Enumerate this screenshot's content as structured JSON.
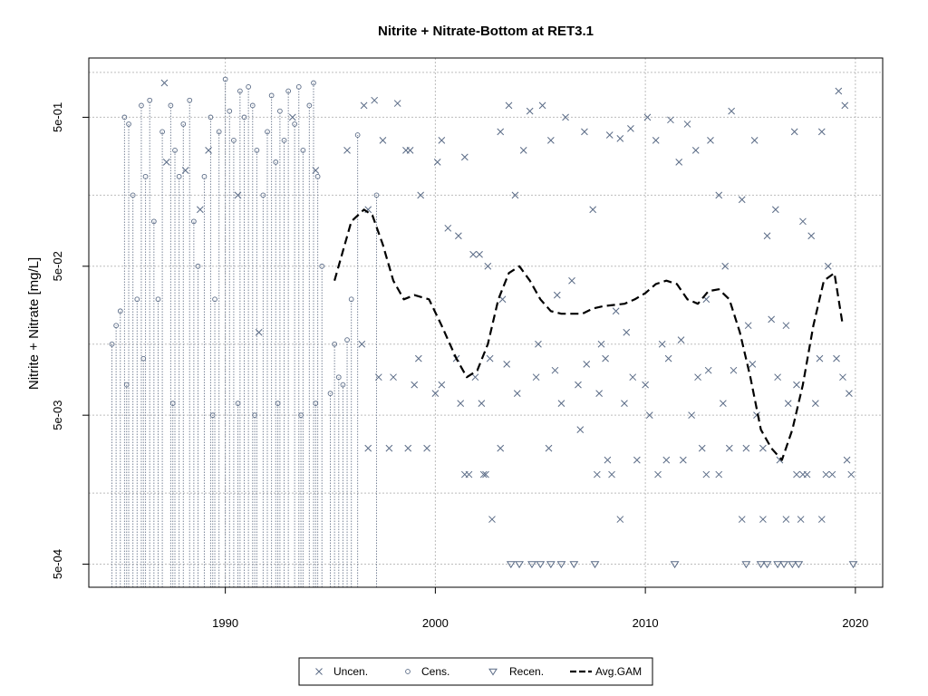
{
  "chart_data": {
    "type": "scatter",
    "title": "Nitrite + Nitrate-Bottom at RET3.1",
    "xlabel": "",
    "ylabel": "Nitrite + Nitrate [mg/L]",
    "x_ticks": [
      1990,
      2000,
      2010,
      2020
    ],
    "y_ticks": [
      "5e-04",
      "5e-03",
      "5e-02",
      "5e-01"
    ],
    "y_scale": "log",
    "ylim": [
      0.00035,
      1.25
    ],
    "xlim": [
      1983.5,
      2021.3
    ],
    "grid": true,
    "legend_position": "bottom",
    "legend": [
      "Uncen.",
      "Cens.",
      "Recen.",
      "Avg.GAM"
    ],
    "colors": {
      "points": "#5a6b86",
      "gam": "#000000",
      "grid": "#bdbdbd"
    },
    "series": [
      {
        "name": "Uncen.",
        "marker": "x",
        "points": [
          [
            1987.1,
            0.85
          ],
          [
            1987.2,
            0.25
          ],
          [
            1988.1,
            0.22
          ],
          [
            1988.8,
            0.12
          ],
          [
            1989.2,
            0.3
          ],
          [
            1990.6,
            0.15
          ],
          [
            1991.6,
            0.018
          ],
          [
            1993.2,
            0.5
          ],
          [
            1994.3,
            0.22
          ],
          [
            1995.8,
            0.3
          ],
          [
            1996.6,
            0.6
          ],
          [
            1997.1,
            0.65
          ],
          [
            1998.2,
            0.62
          ],
          [
            1998.6,
            0.3
          ],
          [
            1999.3,
            0.15
          ],
          [
            2000.1,
            0.25
          ],
          [
            2000.3,
            0.35
          ],
          [
            2001.1,
            0.08
          ],
          [
            2001.4,
            0.27
          ],
          [
            2002.1,
            0.06
          ],
          [
            2003.1,
            0.4
          ],
          [
            2003.5,
            0.6
          ],
          [
            2003.8,
            0.15
          ],
          [
            2004.2,
            0.3
          ],
          [
            2004.5,
            0.55
          ],
          [
            2005.1,
            0.6
          ],
          [
            2005.5,
            0.35
          ],
          [
            2006.2,
            0.5
          ],
          [
            2007.1,
            0.4
          ],
          [
            2007.5,
            0.12
          ],
          [
            2008.3,
            0.38
          ],
          [
            2008.8,
            0.36
          ],
          [
            2009.3,
            0.42
          ],
          [
            2010.1,
            0.5
          ],
          [
            2010.5,
            0.35
          ],
          [
            2011.2,
            0.48
          ],
          [
            2011.6,
            0.25
          ],
          [
            2012.0,
            0.45
          ],
          [
            2012.4,
            0.3
          ],
          [
            2013.1,
            0.35
          ],
          [
            2013.5,
            0.15
          ],
          [
            2014.1,
            0.55
          ],
          [
            2014.6,
            0.14
          ],
          [
            2015.2,
            0.35
          ],
          [
            2015.8,
            0.08
          ],
          [
            2016.2,
            0.12
          ],
          [
            2017.1,
            0.4
          ],
          [
            2017.9,
            0.08
          ],
          [
            2018.4,
            0.4
          ],
          [
            2019.2,
            0.75
          ],
          [
            2019.5,
            0.6
          ],
          [
            1996.8,
            0.12
          ],
          [
            1997.5,
            0.35
          ],
          [
            1998.8,
            0.3
          ],
          [
            2000.6,
            0.09
          ],
          [
            2001.8,
            0.06
          ],
          [
            2002.5,
            0.05
          ],
          [
            2003.2,
            0.03
          ],
          [
            2004.9,
            0.015
          ],
          [
            2005.8,
            0.032
          ],
          [
            2006.5,
            0.04
          ],
          [
            2007.9,
            0.015
          ],
          [
            2008.6,
            0.025
          ],
          [
            2009.1,
            0.018
          ],
          [
            2010.8,
            0.015
          ],
          [
            2011.7,
            0.016
          ],
          [
            2012.9,
            0.03
          ],
          [
            2013.8,
            0.05
          ],
          [
            2014.9,
            0.02
          ],
          [
            2016.0,
            0.022
          ],
          [
            2016.7,
            0.02
          ],
          [
            2017.5,
            0.1
          ],
          [
            2018.7,
            0.05
          ],
          [
            2019.1,
            0.012
          ],
          [
            1996.5,
            0.015
          ],
          [
            1997.3,
            0.009
          ],
          [
            1998.0,
            0.009
          ],
          [
            1999.2,
            0.012
          ],
          [
            2000.3,
            0.008
          ],
          [
            2001.0,
            0.012
          ],
          [
            2001.9,
            0.009
          ],
          [
            2002.6,
            0.012
          ],
          [
            2003.4,
            0.011
          ],
          [
            2004.8,
            0.009
          ],
          [
            2005.7,
            0.01
          ],
          [
            2006.8,
            0.008
          ],
          [
            2007.2,
            0.011
          ],
          [
            2008.1,
            0.012
          ],
          [
            2009.4,
            0.009
          ],
          [
            2010.0,
            0.008
          ],
          [
            2011.1,
            0.012
          ],
          [
            2012.5,
            0.009
          ],
          [
            2013.0,
            0.01
          ],
          [
            2014.2,
            0.01
          ],
          [
            2015.1,
            0.011
          ],
          [
            2016.3,
            0.009
          ],
          [
            2017.2,
            0.008
          ],
          [
            2018.3,
            0.012
          ],
          [
            2019.4,
            0.009
          ],
          [
            1999.0,
            0.008
          ],
          [
            2000.0,
            0.007
          ],
          [
            2001.2,
            0.006
          ],
          [
            2002.2,
            0.006
          ],
          [
            2003.9,
            0.007
          ],
          [
            2006.0,
            0.006
          ],
          [
            2007.8,
            0.007
          ],
          [
            2009.0,
            0.006
          ],
          [
            2010.2,
            0.005
          ],
          [
            2012.2,
            0.005
          ],
          [
            2013.7,
            0.006
          ],
          [
            2015.3,
            0.005
          ],
          [
            2016.8,
            0.006
          ],
          [
            2018.1,
            0.006
          ],
          [
            2019.7,
            0.007
          ],
          [
            1996.8,
            0.003
          ],
          [
            1997.8,
            0.003
          ],
          [
            1998.7,
            0.003
          ],
          [
            1999.6,
            0.003
          ],
          [
            2001.4,
            0.002
          ],
          [
            2002.4,
            0.002
          ],
          [
            2003.1,
            0.003
          ],
          [
            2005.4,
            0.003
          ],
          [
            2006.9,
            0.004
          ],
          [
            2008.2,
            0.0025
          ],
          [
            2009.6,
            0.0025
          ],
          [
            2011.0,
            0.0025
          ],
          [
            2011.8,
            0.0025
          ],
          [
            2012.7,
            0.003
          ],
          [
            2014.0,
            0.003
          ],
          [
            2014.8,
            0.003
          ],
          [
            2015.6,
            0.003
          ],
          [
            2016.4,
            0.0025
          ],
          [
            2017.7,
            0.002
          ],
          [
            2018.9,
            0.002
          ],
          [
            2019.6,
            0.0025
          ],
          [
            2001.6,
            0.002
          ],
          [
            2002.3,
            0.002
          ],
          [
            2007.7,
            0.002
          ],
          [
            2008.4,
            0.002
          ],
          [
            2010.6,
            0.002
          ],
          [
            2012.9,
            0.002
          ],
          [
            2013.5,
            0.002
          ],
          [
            2017.2,
            0.002
          ],
          [
            2017.5,
            0.002
          ],
          [
            2018.6,
            0.002
          ],
          [
            2019.8,
            0.002
          ],
          [
            2002.7,
            0.001
          ],
          [
            2008.8,
            0.001
          ],
          [
            2014.6,
            0.001
          ],
          [
            2015.6,
            0.001
          ],
          [
            2016.7,
            0.001
          ],
          [
            2017.4,
            0.001
          ],
          [
            2018.4,
            0.001
          ]
        ]
      },
      {
        "name": "Cens.",
        "marker": "o",
        "points": [
          [
            1984.6,
            0.015
          ],
          [
            1984.8,
            0.02
          ],
          [
            1985.0,
            0.025
          ],
          [
            1985.2,
            0.5
          ],
          [
            1985.4,
            0.45
          ],
          [
            1985.6,
            0.15
          ],
          [
            1985.8,
            0.03
          ],
          [
            1986.0,
            0.6
          ],
          [
            1986.2,
            0.2
          ],
          [
            1986.4,
            0.65
          ],
          [
            1986.6,
            0.1
          ],
          [
            1986.8,
            0.03
          ],
          [
            1987.0,
            0.4
          ],
          [
            1987.4,
            0.6
          ],
          [
            1987.6,
            0.3
          ],
          [
            1987.8,
            0.2
          ],
          [
            1988.0,
            0.45
          ],
          [
            1988.3,
            0.65
          ],
          [
            1988.5,
            0.1
          ],
          [
            1988.7,
            0.05
          ],
          [
            1989.0,
            0.2
          ],
          [
            1989.3,
            0.5
          ],
          [
            1989.5,
            0.03
          ],
          [
            1989.7,
            0.4
          ],
          [
            1990.0,
            0.9
          ],
          [
            1990.2,
            0.55
          ],
          [
            1990.4,
            0.35
          ],
          [
            1990.7,
            0.75
          ],
          [
            1990.9,
            0.5
          ],
          [
            1991.1,
            0.8
          ],
          [
            1991.3,
            0.6
          ],
          [
            1991.5,
            0.3
          ],
          [
            1991.8,
            0.15
          ],
          [
            1992.0,
            0.4
          ],
          [
            1992.2,
            0.7
          ],
          [
            1992.4,
            0.25
          ],
          [
            1992.6,
            0.55
          ],
          [
            1992.8,
            0.35
          ],
          [
            1993.0,
            0.75
          ],
          [
            1993.3,
            0.45
          ],
          [
            1993.5,
            0.8
          ],
          [
            1993.7,
            0.3
          ],
          [
            1994.0,
            0.6
          ],
          [
            1994.2,
            0.85
          ],
          [
            1994.4,
            0.2
          ],
          [
            1994.6,
            0.05
          ],
          [
            1995.0,
            0.007
          ],
          [
            1995.2,
            0.015
          ],
          [
            1995.4,
            0.009
          ],
          [
            1995.6,
            0.008
          ],
          [
            1995.8,
            0.016
          ],
          [
            1996.0,
            0.03
          ],
          [
            1996.3,
            0.38
          ],
          [
            1997.2,
            0.15
          ],
          [
            1985.3,
            0.008
          ],
          [
            1986.1,
            0.012
          ],
          [
            1987.5,
            0.006
          ],
          [
            1989.4,
            0.005
          ],
          [
            1990.6,
            0.006
          ],
          [
            1991.4,
            0.005
          ],
          [
            1992.5,
            0.006
          ],
          [
            1993.6,
            0.005
          ],
          [
            1994.3,
            0.006
          ]
        ]
      },
      {
        "name": "Recen.",
        "marker": "v",
        "points": [
          [
            2003.6,
            0.0005
          ],
          [
            2004.0,
            0.0005
          ],
          [
            2004.6,
            0.0005
          ],
          [
            2005.0,
            0.0005
          ],
          [
            2005.5,
            0.0005
          ],
          [
            2006.0,
            0.0005
          ],
          [
            2006.6,
            0.0005
          ],
          [
            2007.6,
            0.0005
          ],
          [
            2011.4,
            0.0005
          ],
          [
            2014.8,
            0.0005
          ],
          [
            2015.5,
            0.0005
          ],
          [
            2015.8,
            0.0005
          ],
          [
            2016.3,
            0.0005
          ],
          [
            2016.6,
            0.0005
          ],
          [
            2017.0,
            0.0005
          ],
          [
            2017.3,
            0.0005
          ],
          [
            2019.9,
            0.0005
          ]
        ]
      },
      {
        "name": "Avg.GAM",
        "line": "dashed",
        "points": [
          [
            1995.2,
            0.04
          ],
          [
            1996.0,
            0.1
          ],
          [
            1996.6,
            0.12
          ],
          [
            1997.0,
            0.11
          ],
          [
            1997.5,
            0.07
          ],
          [
            1998.0,
            0.04
          ],
          [
            1998.5,
            0.03
          ],
          [
            1999.0,
            0.032
          ],
          [
            1999.7,
            0.03
          ],
          [
            2000.3,
            0.02
          ],
          [
            2001.0,
            0.012
          ],
          [
            2001.5,
            0.009
          ],
          [
            2002.0,
            0.01
          ],
          [
            2002.5,
            0.015
          ],
          [
            2003.0,
            0.03
          ],
          [
            2003.5,
            0.045
          ],
          [
            2004.0,
            0.05
          ],
          [
            2004.5,
            0.04
          ],
          [
            2005.0,
            0.03
          ],
          [
            2005.5,
            0.025
          ],
          [
            2006.0,
            0.024
          ],
          [
            2007.0,
            0.024
          ],
          [
            2007.5,
            0.026
          ],
          [
            2008.0,
            0.027
          ],
          [
            2009.0,
            0.028
          ],
          [
            2009.5,
            0.03
          ],
          [
            2010.0,
            0.033
          ],
          [
            2010.5,
            0.038
          ],
          [
            2011.0,
            0.04
          ],
          [
            2011.5,
            0.038
          ],
          [
            2012.0,
            0.03
          ],
          [
            2012.5,
            0.028
          ],
          [
            2013.0,
            0.034
          ],
          [
            2013.5,
            0.035
          ],
          [
            2014.0,
            0.03
          ],
          [
            2014.5,
            0.018
          ],
          [
            2015.0,
            0.009
          ],
          [
            2015.5,
            0.004
          ],
          [
            2016.0,
            0.003
          ],
          [
            2016.5,
            0.0025
          ],
          [
            2017.0,
            0.004
          ],
          [
            2017.5,
            0.008
          ],
          [
            2018.0,
            0.02
          ],
          [
            2018.5,
            0.04
          ],
          [
            2019.0,
            0.045
          ],
          [
            2019.4,
            0.02
          ]
        ]
      }
    ]
  }
}
